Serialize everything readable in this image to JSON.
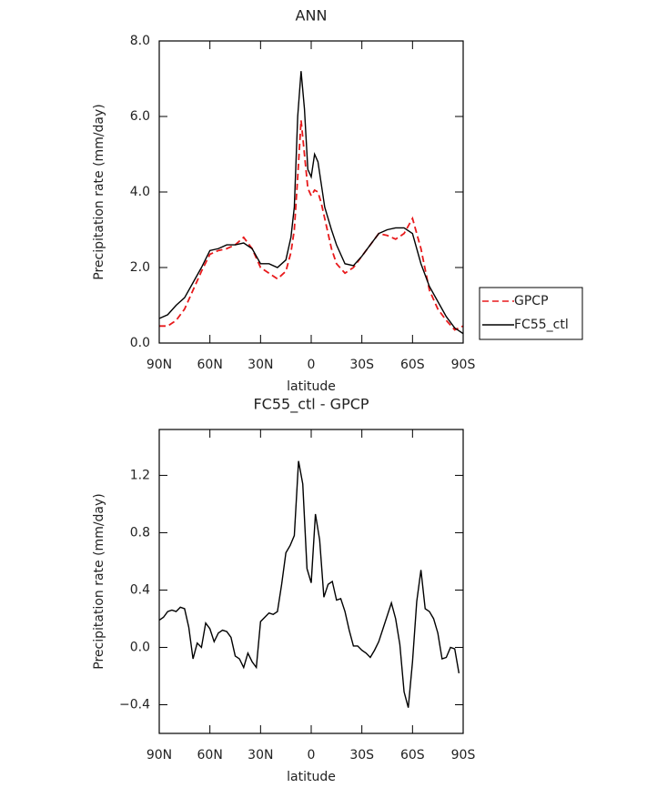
{
  "chart_data": [
    {
      "type": "line",
      "title": "ANN",
      "xlabel": "latitude",
      "ylabel": "Precipitation rate (mm/day)",
      "x": [
        90,
        85,
        80,
        75,
        70,
        65,
        60,
        55,
        50,
        45,
        40,
        35,
        30,
        25,
        20,
        15,
        12,
        10,
        8,
        6,
        4,
        2,
        0,
        -2,
        -4,
        -6,
        -8,
        -10,
        -12,
        -15,
        -20,
        -25,
        -30,
        -35,
        -40,
        -45,
        -50,
        -55,
        -60,
        -65,
        -70,
        -75,
        -80,
        -85,
        -90
      ],
      "series": [
        {
          "name": "GPCP",
          "color": "#e8191b",
          "line_style": "dashed",
          "values": [
            0.45,
            0.45,
            0.6,
            0.9,
            1.4,
            1.9,
            2.35,
            2.45,
            2.5,
            2.6,
            2.8,
            2.5,
            2.0,
            1.85,
            1.7,
            1.9,
            2.4,
            3.0,
            4.4,
            5.9,
            5.0,
            4.1,
            3.9,
            4.05,
            4.0,
            3.7,
            3.3,
            2.9,
            2.5,
            2.1,
            1.85,
            2.0,
            2.3,
            2.6,
            2.9,
            2.85,
            2.75,
            2.9,
            3.3,
            2.5,
            1.4,
            0.9,
            0.6,
            0.35,
            0.45
          ]
        },
        {
          "name": "FC55_ctl",
          "color": "#000000",
          "line_style": "solid",
          "values": [
            0.65,
            0.75,
            1.0,
            1.2,
            1.6,
            2.0,
            2.45,
            2.5,
            2.6,
            2.6,
            2.65,
            2.5,
            2.1,
            2.1,
            2.0,
            2.2,
            2.8,
            3.6,
            6.0,
            7.2,
            6.2,
            4.6,
            4.4,
            5.0,
            4.8,
            4.2,
            3.6,
            3.3,
            3.0,
            2.6,
            2.1,
            2.05,
            2.3,
            2.6,
            2.9,
            3.0,
            3.05,
            3.05,
            2.9,
            2.1,
            1.5,
            1.1,
            0.7,
            0.4,
            0.25
          ]
        }
      ],
      "xlim": [
        90,
        -90
      ],
      "xticks": [
        {
          "value": 90,
          "label": "90N"
        },
        {
          "value": 60,
          "label": "60N"
        },
        {
          "value": 30,
          "label": "30N"
        },
        0,
        {
          "value": -30,
          "label": "30S"
        },
        {
          "value": -60,
          "label": "60S"
        },
        {
          "value": -90,
          "label": "90S"
        }
      ],
      "ylim": [
        0,
        8
      ],
      "yticks": [
        {
          "value": 0,
          "label": "0.0"
        },
        {
          "value": 2,
          "label": "2.0"
        },
        {
          "value": 4,
          "label": "4.0"
        },
        {
          "value": 6,
          "label": "6.0"
        },
        {
          "value": 8,
          "label": "8.0"
        }
      ],
      "legend": "right"
    },
    {
      "type": "line",
      "title": "FC55_ctl - GPCP",
      "xlabel": "latitude",
      "ylabel": "Precipitation rate (mm/day)",
      "x": [
        90,
        87.5,
        85,
        82.5,
        80,
        77.5,
        75,
        72.5,
        70,
        67.5,
        65,
        62.5,
        60,
        57.5,
        55,
        52.5,
        50,
        47.5,
        45,
        42.5,
        40,
        37.5,
        35,
        32.5,
        30,
        27.5,
        25,
        22.5,
        20,
        17.5,
        15,
        12.5,
        10,
        7.5,
        5,
        2.5,
        0,
        -2.5,
        -5,
        -7.5,
        -10,
        -12.5,
        -15,
        -17.5,
        -20,
        -22.5,
        -25,
        -27.5,
        -30,
        -32.5,
        -35,
        -37.5,
        -40,
        -42.5,
        -45,
        -47.5,
        -50,
        -52.5,
        -55,
        -57.5,
        -60,
        -62.5,
        -65,
        -67.5,
        -70,
        -72.5,
        -75,
        -77.5,
        -80,
        -82.5,
        -85,
        -87.5
      ],
      "values": [
        0.19,
        0.21,
        0.25,
        0.26,
        0.25,
        0.28,
        0.27,
        0.14,
        -0.08,
        0.03,
        0.0,
        0.17,
        0.13,
        0.04,
        0.1,
        0.12,
        0.11,
        0.07,
        -0.06,
        -0.08,
        -0.14,
        -0.04,
        -0.1,
        -0.14,
        0.18,
        0.21,
        0.24,
        0.23,
        0.25,
        0.44,
        0.66,
        0.71,
        0.78,
        1.3,
        1.14,
        0.55,
        0.45,
        0.93,
        0.75,
        0.35,
        0.44,
        0.46,
        0.33,
        0.34,
        0.25,
        0.12,
        0.01,
        0.01,
        -0.02,
        -0.04,
        -0.07,
        -0.02,
        0.04,
        0.13,
        0.22,
        0.31,
        0.2,
        0.02,
        -0.31,
        -0.42,
        -0.1,
        0.32,
        0.54,
        0.27,
        0.25,
        0.2,
        0.1,
        -0.08,
        -0.07,
        0.0,
        -0.01,
        -0.18
      ],
      "color": "#000000",
      "xlim": [
        90,
        -90
      ],
      "xticks": [
        {
          "value": 90,
          "label": "90N"
        },
        {
          "value": 60,
          "label": "60N"
        },
        {
          "value": 30,
          "label": "30N"
        },
        0,
        {
          "value": -30,
          "label": "30S"
        },
        {
          "value": -60,
          "label": "60S"
        },
        {
          "value": -90,
          "label": "90S"
        }
      ],
      "ylim": [
        -0.6,
        1.52
      ],
      "yticks": [
        1.2,
        0.8,
        0.4,
        {
          "value": 0,
          "label": "0.0"
        },
        -0.4
      ]
    }
  ]
}
